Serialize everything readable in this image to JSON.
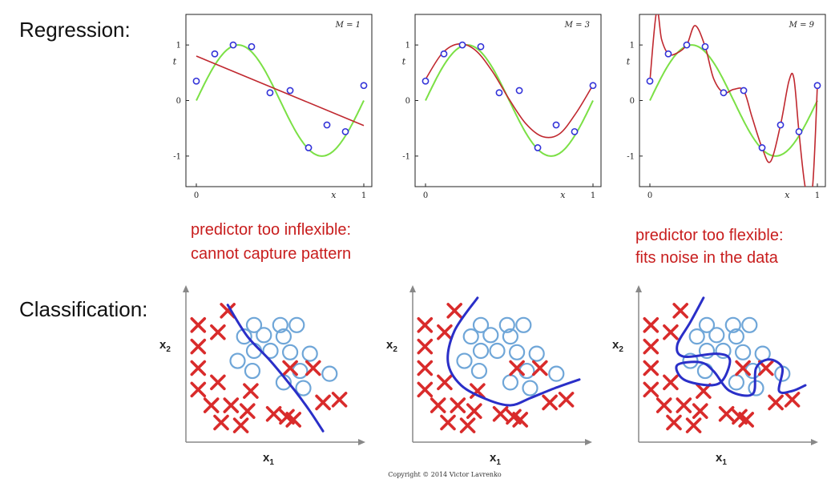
{
  "sections": {
    "regression": "Regression:",
    "classification": "Classification:"
  },
  "annotations": {
    "inflexible": [
      "predictor too inflexible:",
      "cannot capture pattern"
    ],
    "flexible": [
      "predictor too flexible:",
      "fits noise in the data"
    ]
  },
  "copyright": "Copyright © 2014 Victor Lavrenko",
  "colors": {
    "truth": "#7be045",
    "fit": "#c0282f",
    "points": "#3232d8",
    "cross": "#d92b2b",
    "circle": "#6fa6d8",
    "boundary": "#2a2fc8"
  },
  "chart_data": [
    {
      "type": "line",
      "title": "M = 1",
      "xlabel": "x",
      "ylabel": "t",
      "xlim": [
        0,
        1
      ],
      "ylim": [
        -1.55,
        1.55
      ],
      "x_ticks": [
        "0",
        "1"
      ],
      "y_ticks": [
        "1",
        "0",
        "-1"
      ],
      "points": [
        [
          0.0,
          0.35
        ],
        [
          0.11,
          0.84
        ],
        [
          0.22,
          1.0
        ],
        [
          0.33,
          0.97
        ],
        [
          0.44,
          0.14
        ],
        [
          0.56,
          0.18
        ],
        [
          0.67,
          -0.85
        ],
        [
          0.78,
          -0.44
        ],
        [
          0.89,
          -0.56
        ],
        [
          1.0,
          0.27
        ]
      ],
      "series": [
        {
          "name": "sin(2πx)",
          "values": [
            [
              0.0,
              0.0
            ],
            [
              0.1,
              0.59
            ],
            [
              0.2,
              0.95
            ],
            [
              0.25,
              1.0
            ],
            [
              0.3,
              0.95
            ],
            [
              0.4,
              0.59
            ],
            [
              0.5,
              0.0
            ],
            [
              0.6,
              -0.59
            ],
            [
              0.7,
              -0.95
            ],
            [
              0.75,
              -1.0
            ],
            [
              0.8,
              -0.95
            ],
            [
              0.9,
              -0.59
            ],
            [
              1.0,
              0.0
            ]
          ]
        },
        {
          "name": "fit M=1",
          "values": [
            [
              0.0,
              0.8
            ],
            [
              1.0,
              -0.45
            ]
          ]
        }
      ]
    },
    {
      "type": "line",
      "title": "M = 3",
      "xlabel": "x",
      "ylabel": "t",
      "xlim": [
        0,
        1
      ],
      "ylim": [
        -1.55,
        1.55
      ],
      "x_ticks": [
        "0",
        "1"
      ],
      "y_ticks": [
        "1",
        "0",
        "-1"
      ],
      "points": [
        [
          0.0,
          0.35
        ],
        [
          0.11,
          0.84
        ],
        [
          0.22,
          1.0
        ],
        [
          0.33,
          0.97
        ],
        [
          0.44,
          0.14
        ],
        [
          0.56,
          0.18
        ],
        [
          0.67,
          -0.85
        ],
        [
          0.78,
          -0.44
        ],
        [
          0.89,
          -0.56
        ],
        [
          1.0,
          0.27
        ]
      ],
      "series": [
        {
          "name": "sin(2πx)",
          "values": [
            [
              0.0,
              0.0
            ],
            [
              0.1,
              0.59
            ],
            [
              0.2,
              0.95
            ],
            [
              0.25,
              1.0
            ],
            [
              0.3,
              0.95
            ],
            [
              0.4,
              0.59
            ],
            [
              0.5,
              0.0
            ],
            [
              0.6,
              -0.59
            ],
            [
              0.7,
              -0.95
            ],
            [
              0.75,
              -1.0
            ],
            [
              0.8,
              -0.95
            ],
            [
              0.9,
              -0.59
            ],
            [
              1.0,
              0.0
            ]
          ]
        },
        {
          "name": "fit M=3",
          "values": [
            [
              0.0,
              0.38
            ],
            [
              0.1,
              0.85
            ],
            [
              0.2,
              1.02
            ],
            [
              0.3,
              0.9
            ],
            [
              0.4,
              0.52
            ],
            [
              0.5,
              0.02
            ],
            [
              0.6,
              -0.42
            ],
            [
              0.7,
              -0.65
            ],
            [
              0.8,
              -0.6
            ],
            [
              0.9,
              -0.22
            ],
            [
              1.0,
              0.28
            ]
          ]
        }
      ]
    },
    {
      "type": "line",
      "title": "M = 9",
      "xlabel": "x",
      "ylabel": "t",
      "xlim": [
        0,
        1
      ],
      "ylim": [
        -1.55,
        1.55
      ],
      "x_ticks": [
        "0",
        "1"
      ],
      "y_ticks": [
        "1",
        "0",
        "-1"
      ],
      "points": [
        [
          0.0,
          0.35
        ],
        [
          0.11,
          0.84
        ],
        [
          0.22,
          1.0
        ],
        [
          0.33,
          0.97
        ],
        [
          0.44,
          0.14
        ],
        [
          0.56,
          0.18
        ],
        [
          0.67,
          -0.85
        ],
        [
          0.78,
          -0.44
        ],
        [
          0.89,
          -0.56
        ],
        [
          1.0,
          0.27
        ]
      ],
      "series": [
        {
          "name": "sin(2πx)",
          "values": [
            [
              0.0,
              0.0
            ],
            [
              0.1,
              0.59
            ],
            [
              0.2,
              0.95
            ],
            [
              0.25,
              1.0
            ],
            [
              0.3,
              0.95
            ],
            [
              0.4,
              0.59
            ],
            [
              0.5,
              0.0
            ],
            [
              0.6,
              -0.59
            ],
            [
              0.7,
              -0.95
            ],
            [
              0.75,
              -1.0
            ],
            [
              0.8,
              -0.95
            ],
            [
              0.9,
              -0.59
            ],
            [
              1.0,
              0.0
            ]
          ]
        },
        {
          "name": "fit M=9",
          "values": [
            [
              0.0,
              0.35
            ],
            [
              0.04,
              1.6
            ],
            [
              0.07,
              1.1
            ],
            [
              0.11,
              0.84
            ],
            [
              0.16,
              0.85
            ],
            [
              0.22,
              1.0
            ],
            [
              0.27,
              1.35
            ],
            [
              0.33,
              0.97
            ],
            [
              0.38,
              0.4
            ],
            [
              0.44,
              0.14
            ],
            [
              0.5,
              0.2
            ],
            [
              0.56,
              0.18
            ],
            [
              0.61,
              -0.3
            ],
            [
              0.67,
              -0.85
            ],
            [
              0.72,
              -1.1
            ],
            [
              0.78,
              -0.44
            ],
            [
              0.83,
              0.35
            ],
            [
              0.86,
              0.4
            ],
            [
              0.89,
              -0.56
            ],
            [
              0.93,
              -1.6
            ],
            [
              0.97,
              -1.6
            ],
            [
              1.0,
              0.27
            ]
          ]
        }
      ]
    },
    {
      "type": "scatter",
      "title": "",
      "xlabel": "x1",
      "ylabel": "x2",
      "xlim": [
        0,
        10
      ],
      "ylim": [
        0,
        10
      ],
      "crosses": [
        [
          2.4,
          9.0
        ],
        [
          0.6,
          8.0
        ],
        [
          1.8,
          7.5
        ],
        [
          0.6,
          6.5
        ],
        [
          0.6,
          5.0
        ],
        [
          1.8,
          4.0
        ],
        [
          0.6,
          3.5
        ],
        [
          1.4,
          2.4
        ],
        [
          2.6,
          2.4
        ],
        [
          3.6,
          2.0
        ],
        [
          5.2,
          1.8
        ],
        [
          6.4,
          1.4
        ],
        [
          8.2,
          2.6
        ],
        [
          2.0,
          1.2
        ],
        [
          3.2,
          1.0
        ],
        [
          6.0,
          1.6
        ],
        [
          3.8,
          3.4
        ],
        [
          6.2,
          5.0
        ],
        [
          7.6,
          5.0
        ],
        [
          9.2,
          2.8
        ]
      ],
      "circles": [
        [
          4.0,
          8.0
        ],
        [
          5.6,
          8.0
        ],
        [
          6.6,
          8.0
        ],
        [
          3.4,
          7.2
        ],
        [
          4.6,
          7.3
        ],
        [
          5.8,
          7.2
        ],
        [
          4.0,
          6.2
        ],
        [
          5.0,
          6.2
        ],
        [
          6.2,
          6.1
        ],
        [
          7.4,
          6.0
        ],
        [
          3.0,
          5.5
        ],
        [
          3.9,
          4.8
        ],
        [
          6.8,
          4.8
        ],
        [
          8.6,
          4.6
        ],
        [
          5.8,
          4.0
        ],
        [
          7.0,
          3.6
        ]
      ],
      "boundary": [
        [
          2.4,
          9.4
        ],
        [
          3.6,
          7.2
        ],
        [
          5.0,
          5.5
        ],
        [
          6.5,
          3.4
        ],
        [
          7.4,
          2.0
        ],
        [
          8.2,
          0.6
        ]
      ]
    },
    {
      "type": "scatter",
      "title": "",
      "xlabel": "x1",
      "ylabel": "x2",
      "xlim": [
        0,
        10
      ],
      "ylim": [
        0,
        10
      ],
      "crosses": [
        [
          2.4,
          9.0
        ],
        [
          0.6,
          8.0
        ],
        [
          1.8,
          7.5
        ],
        [
          0.6,
          6.5
        ],
        [
          0.6,
          5.0
        ],
        [
          1.8,
          4.0
        ],
        [
          0.6,
          3.5
        ],
        [
          1.4,
          2.4
        ],
        [
          2.6,
          2.4
        ],
        [
          3.6,
          2.0
        ],
        [
          5.2,
          1.8
        ],
        [
          6.4,
          1.4
        ],
        [
          8.2,
          2.6
        ],
        [
          2.0,
          1.2
        ],
        [
          3.2,
          1.0
        ],
        [
          6.0,
          1.6
        ],
        [
          3.8,
          3.4
        ],
        [
          6.2,
          5.0
        ],
        [
          7.6,
          5.0
        ],
        [
          9.2,
          2.8
        ]
      ],
      "circles": [
        [
          4.0,
          8.0
        ],
        [
          5.6,
          8.0
        ],
        [
          6.6,
          8.0
        ],
        [
          3.4,
          7.2
        ],
        [
          4.6,
          7.3
        ],
        [
          5.8,
          7.2
        ],
        [
          4.0,
          6.2
        ],
        [
          5.0,
          6.2
        ],
        [
          6.2,
          6.1
        ],
        [
          7.4,
          6.0
        ],
        [
          3.0,
          5.5
        ],
        [
          3.9,
          4.8
        ],
        [
          6.8,
          4.8
        ],
        [
          8.6,
          4.6
        ],
        [
          5.8,
          4.0
        ],
        [
          7.0,
          3.6
        ]
      ],
      "boundary": [
        [
          3.8,
          9.9
        ],
        [
          2.4,
          7.6
        ],
        [
          2.0,
          5.4
        ],
        [
          2.8,
          3.8
        ],
        [
          4.4,
          2.8
        ],
        [
          5.8,
          2.4
        ],
        [
          7.0,
          2.9
        ],
        [
          8.5,
          3.6
        ],
        [
          10.0,
          4.2
        ]
      ]
    },
    {
      "type": "scatter",
      "title": "",
      "xlabel": "x1",
      "ylabel": "x2",
      "xlim": [
        0,
        10
      ],
      "ylim": [
        0,
        10
      ],
      "crosses": [
        [
          2.4,
          9.0
        ],
        [
          0.6,
          8.0
        ],
        [
          1.8,
          7.5
        ],
        [
          0.6,
          6.5
        ],
        [
          0.6,
          5.0
        ],
        [
          1.8,
          4.0
        ],
        [
          0.6,
          3.5
        ],
        [
          1.4,
          2.4
        ],
        [
          2.6,
          2.4
        ],
        [
          3.6,
          2.0
        ],
        [
          5.2,
          1.8
        ],
        [
          6.4,
          1.4
        ],
        [
          8.2,
          2.6
        ],
        [
          2.0,
          1.2
        ],
        [
          3.2,
          1.0
        ],
        [
          6.0,
          1.6
        ],
        [
          3.8,
          3.4
        ],
        [
          6.2,
          5.0
        ],
        [
          7.6,
          5.0
        ],
        [
          9.2,
          2.8
        ]
      ],
      "circles": [
        [
          4.0,
          8.0
        ],
        [
          5.6,
          8.0
        ],
        [
          6.6,
          8.0
        ],
        [
          3.4,
          7.2
        ],
        [
          4.6,
          7.3
        ],
        [
          5.8,
          7.2
        ],
        [
          4.0,
          6.2
        ],
        [
          5.0,
          6.2
        ],
        [
          6.2,
          6.1
        ],
        [
          7.4,
          6.0
        ],
        [
          3.0,
          5.5
        ],
        [
          3.9,
          4.8
        ],
        [
          6.8,
          4.8
        ],
        [
          8.6,
          4.6
        ],
        [
          5.8,
          4.0
        ],
        [
          7.0,
          3.6
        ]
      ],
      "boundary": [
        [
          3.8,
          9.9
        ],
        [
          3.0,
          8.2
        ],
        [
          2.2,
          6.6
        ],
        [
          2.6,
          5.8
        ],
        [
          4.6,
          6.0
        ],
        [
          5.4,
          5.6
        ],
        [
          5.0,
          4.2
        ],
        [
          4.2,
          3.8
        ],
        [
          2.6,
          4.2
        ],
        [
          2.2,
          5.2
        ],
        [
          3.6,
          5.4
        ],
        [
          4.4,
          4.8
        ],
        [
          5.4,
          3.4
        ],
        [
          6.8,
          3.2
        ],
        [
          7.0,
          5.0
        ],
        [
          7.8,
          5.6
        ],
        [
          8.6,
          5.0
        ],
        [
          8.4,
          3.4
        ],
        [
          9.2,
          3.4
        ],
        [
          10.0,
          3.8
        ]
      ]
    }
  ]
}
